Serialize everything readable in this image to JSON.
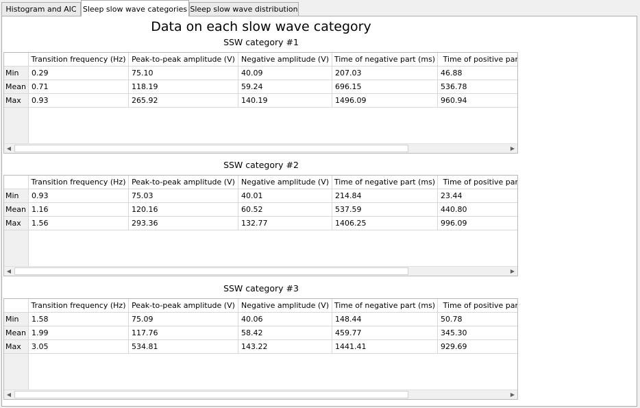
{
  "tabs": [
    {
      "label": "Histogram and AIC",
      "active": false
    },
    {
      "label": "Sleep slow wave categories",
      "active": true
    },
    {
      "label": "Sleep slow wave distribution",
      "active": false
    }
  ],
  "main_title": "Data on each slow wave category",
  "columns": [
    "Transition frequency (Hz)",
    "Peak-to-peak amplitude (V)",
    "Negative amplitude (V)",
    "Time of negative part (ms)",
    "Time of positive part"
  ],
  "row_labels": [
    "Min",
    "Mean",
    "Max"
  ],
  "categories": [
    {
      "title": "SSW category #1",
      "rows": [
        [
          "0.29",
          "75.10",
          "40.09",
          "207.03",
          "46.88"
        ],
        [
          "0.71",
          "118.19",
          "59.24",
          "696.15",
          "536.78"
        ],
        [
          "0.93",
          "265.92",
          "140.19",
          "1496.09",
          "960.94"
        ]
      ]
    },
    {
      "title": "SSW category #2",
      "rows": [
        [
          "0.93",
          "75.03",
          "40.01",
          "214.84",
          "23.44"
        ],
        [
          "1.16",
          "120.16",
          "60.52",
          "537.59",
          "440.80"
        ],
        [
          "1.56",
          "293.36",
          "132.77",
          "1406.25",
          "996.09"
        ]
      ]
    },
    {
      "title": "SSW category #3",
      "rows": [
        [
          "1.58",
          "75.09",
          "40.06",
          "148.44",
          "50.78"
        ],
        [
          "1.99",
          "117.76",
          "58.42",
          "459.77",
          "345.30"
        ],
        [
          "3.05",
          "534.81",
          "143.22",
          "1441.41",
          "929.69"
        ]
      ]
    }
  ],
  "scroll_icons": {
    "left": "scroll-left-arrow-icon",
    "right": "scroll-right-arrow-icon"
  }
}
